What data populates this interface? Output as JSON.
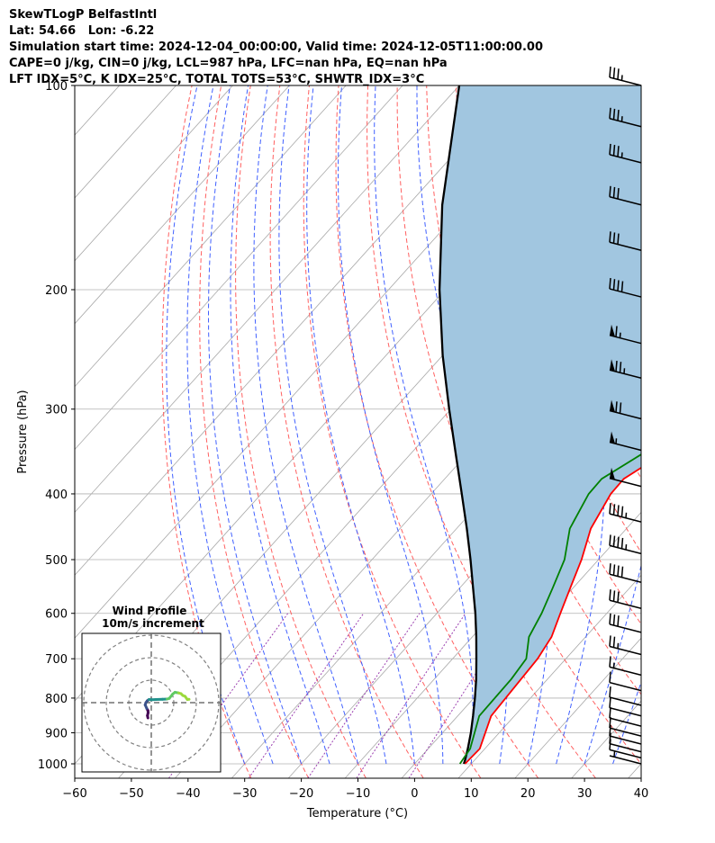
{
  "header": {
    "title": "SkewTLogP BelfastIntl",
    "latlon": "Lat: 54.66   Lon: -6.22",
    "simulation": "Simulation start time: 2024-12-04_00:00:00, Valid time: 2024-12-05T11:00:00.00",
    "cape_line": "CAPE=0 j/kg, CIN=0 j/kg, LCL=987 hPa, LFC=nan hPa, EQ=nan hPa",
    "index_line": "LFT IDX=5°C, K IDX=25°C, TOTAL TOTS=53°C, SHWTR_IDX=3°C"
  },
  "colors": {
    "temperature": "#ff0000",
    "dewpoint": "#008000",
    "parcel": "#000000",
    "cape_fill": "#a1c6e0",
    "dry_adiabat": "#ff6060",
    "moist_adiabat": "#4060ff",
    "mixing_ratio": "#9b40b0",
    "isotherm": "#a8a8a8",
    "grid": "#b0b0b0"
  },
  "chart_data": {
    "type": "skewt",
    "xlabel": "Temperature (°C)",
    "ylabel": "Pressure (hPa)",
    "xlim": [
      -60,
      40
    ],
    "ylim": [
      1050,
      100
    ],
    "xticks": [
      -60,
      -50,
      -40,
      -30,
      -20,
      -10,
      0,
      10,
      20,
      30,
      40
    ],
    "yticks": [
      100,
      200,
      300,
      400,
      500,
      600,
      700,
      800,
      900,
      1000
    ],
    "xtick_labels": [
      "−60",
      "−50",
      "−40",
      "−30",
      "−20",
      "−10",
      "0",
      "10",
      "20",
      "30",
      "40"
    ],
    "ytick_labels": [
      "100",
      "200",
      "300",
      "400",
      "500",
      "600",
      "700",
      "800",
      "900",
      "1000"
    ],
    "temperature": [
      [
        1000,
        8.9
      ],
      [
        950,
        9.1
      ],
      [
        850,
        5.9
      ],
      [
        700,
        5.0
      ],
      [
        650,
        4.0
      ],
      [
        600,
        1.8
      ],
      [
        550,
        -0.5
      ],
      [
        500,
        -3.0
      ],
      [
        450,
        -6.3
      ],
      [
        400,
        -8.3
      ],
      [
        380,
        -8.4
      ],
      [
        350,
        -5.5
      ],
      [
        330,
        -3.3
      ],
      [
        310,
        -3.2
      ],
      [
        290,
        -4.7
      ],
      [
        270,
        -6.7
      ],
      [
        250,
        -9.0
      ],
      [
        235,
        -10.6
      ],
      [
        220,
        -10.5
      ],
      [
        210,
        -8.4
      ],
      [
        200,
        -2.6
      ],
      [
        185,
        -1.7
      ],
      [
        170,
        -1.2
      ],
      [
        160,
        -0.6
      ],
      [
        150,
        0.4
      ],
      [
        140,
        2.4
      ],
      [
        130,
        5.0
      ],
      [
        120,
        7.5
      ],
      [
        110,
        8.7
      ],
      [
        105,
        9.4
      ],
      [
        100,
        11.5
      ]
    ],
    "dewpoint": [
      [
        1000,
        8.0
      ],
      [
        950,
        7.4
      ],
      [
        850,
        3.8
      ],
      [
        750,
        3.6
      ],
      [
        700,
        3.0
      ],
      [
        650,
        0.0
      ],
      [
        600,
        -1.5
      ],
      [
        550,
        -3.6
      ],
      [
        500,
        -6.0
      ],
      [
        450,
        -10.0
      ],
      [
        400,
        -12.2
      ],
      [
        380,
        -12.3
      ],
      [
        350,
        -9.2
      ],
      [
        330,
        -7.2
      ],
      [
        310,
        -6.1
      ],
      [
        290,
        -6.5
      ],
      [
        270,
        -8.5
      ],
      [
        250,
        -10.0
      ],
      [
        235,
        -11.5
      ],
      [
        220,
        -13.5
      ],
      [
        210,
        -17.9
      ],
      [
        200,
        -25.2
      ],
      [
        180,
        -24.3
      ],
      [
        170,
        -23.5
      ],
      [
        160,
        -21.0
      ],
      [
        150,
        -18.5
      ],
      [
        140,
        -16.0
      ],
      [
        130,
        -14.0
      ],
      [
        120,
        -12.5
      ],
      [
        110,
        -11.0
      ],
      [
        100,
        -9.5
      ]
    ],
    "parcel": [
      [
        1000,
        8.7
      ],
      [
        987,
        8.3
      ],
      [
        950,
        7.0
      ],
      [
        900,
        5.0
      ],
      [
        850,
        2.7
      ],
      [
        800,
        0.2
      ],
      [
        750,
        -2.6
      ],
      [
        700,
        -5.8
      ],
      [
        650,
        -9.3
      ],
      [
        600,
        -13.2
      ],
      [
        550,
        -17.7
      ],
      [
        500,
        -22.6
      ],
      [
        450,
        -28.2
      ],
      [
        400,
        -34.6
      ],
      [
        350,
        -41.9
      ],
      [
        300,
        -50.3
      ],
      [
        250,
        -60.0
      ],
      [
        200,
        -71.0
      ],
      [
        150,
        -84.0
      ],
      [
        100,
        -100.0
      ]
    ],
    "wind_barbs": [
      [
        1000,
        5
      ],
      [
        980,
        10
      ],
      [
        960,
        10
      ],
      [
        935,
        10
      ],
      [
        910,
        10
      ],
      [
        880,
        10
      ],
      [
        850,
        10
      ],
      [
        820,
        10
      ],
      [
        780,
        10
      ],
      [
        740,
        15
      ],
      [
        690,
        25
      ],
      [
        640,
        30
      ],
      [
        590,
        30
      ],
      [
        540,
        40
      ],
      [
        490,
        45
      ],
      [
        440,
        45
      ],
      [
        390,
        50
      ],
      [
        345,
        55
      ],
      [
        310,
        70
      ],
      [
        270,
        75
      ],
      [
        240,
        65
      ],
      [
        205,
        40
      ],
      [
        175,
        30
      ],
      [
        150,
        30
      ],
      [
        130,
        35
      ],
      [
        115,
        35
      ],
      [
        100,
        35
      ]
    ],
    "hodograph": {
      "title": "Wind Profile",
      "subtitle": "10m/s increment",
      "points": [
        [
          1.5,
          -6.8
        ],
        [
          1.7,
          -5.8
        ],
        [
          1.4,
          -4.4
        ],
        [
          1.5,
          -3.5
        ],
        [
          2.0,
          -2.6
        ],
        [
          2.7,
          -1.0
        ],
        [
          2.4,
          0.0
        ],
        [
          1.8,
          0.8
        ],
        [
          1.0,
          1.4
        ],
        [
          -0.2,
          1.3
        ],
        [
          -2.0,
          1.4
        ],
        [
          -5.0,
          1.5
        ],
        [
          -7.0,
          1.6
        ],
        [
          -8.0,
          1.9
        ],
        [
          -9.5,
          3.8
        ],
        [
          -10.5,
          4.6
        ],
        [
          -12.2,
          4.3
        ],
        [
          -13.2,
          4.0
        ],
        [
          -14.0,
          3.2
        ],
        [
          -15.0,
          2.8
        ],
        [
          -16.0,
          1.4
        ],
        [
          -16.8,
          1.5
        ]
      ]
    }
  }
}
